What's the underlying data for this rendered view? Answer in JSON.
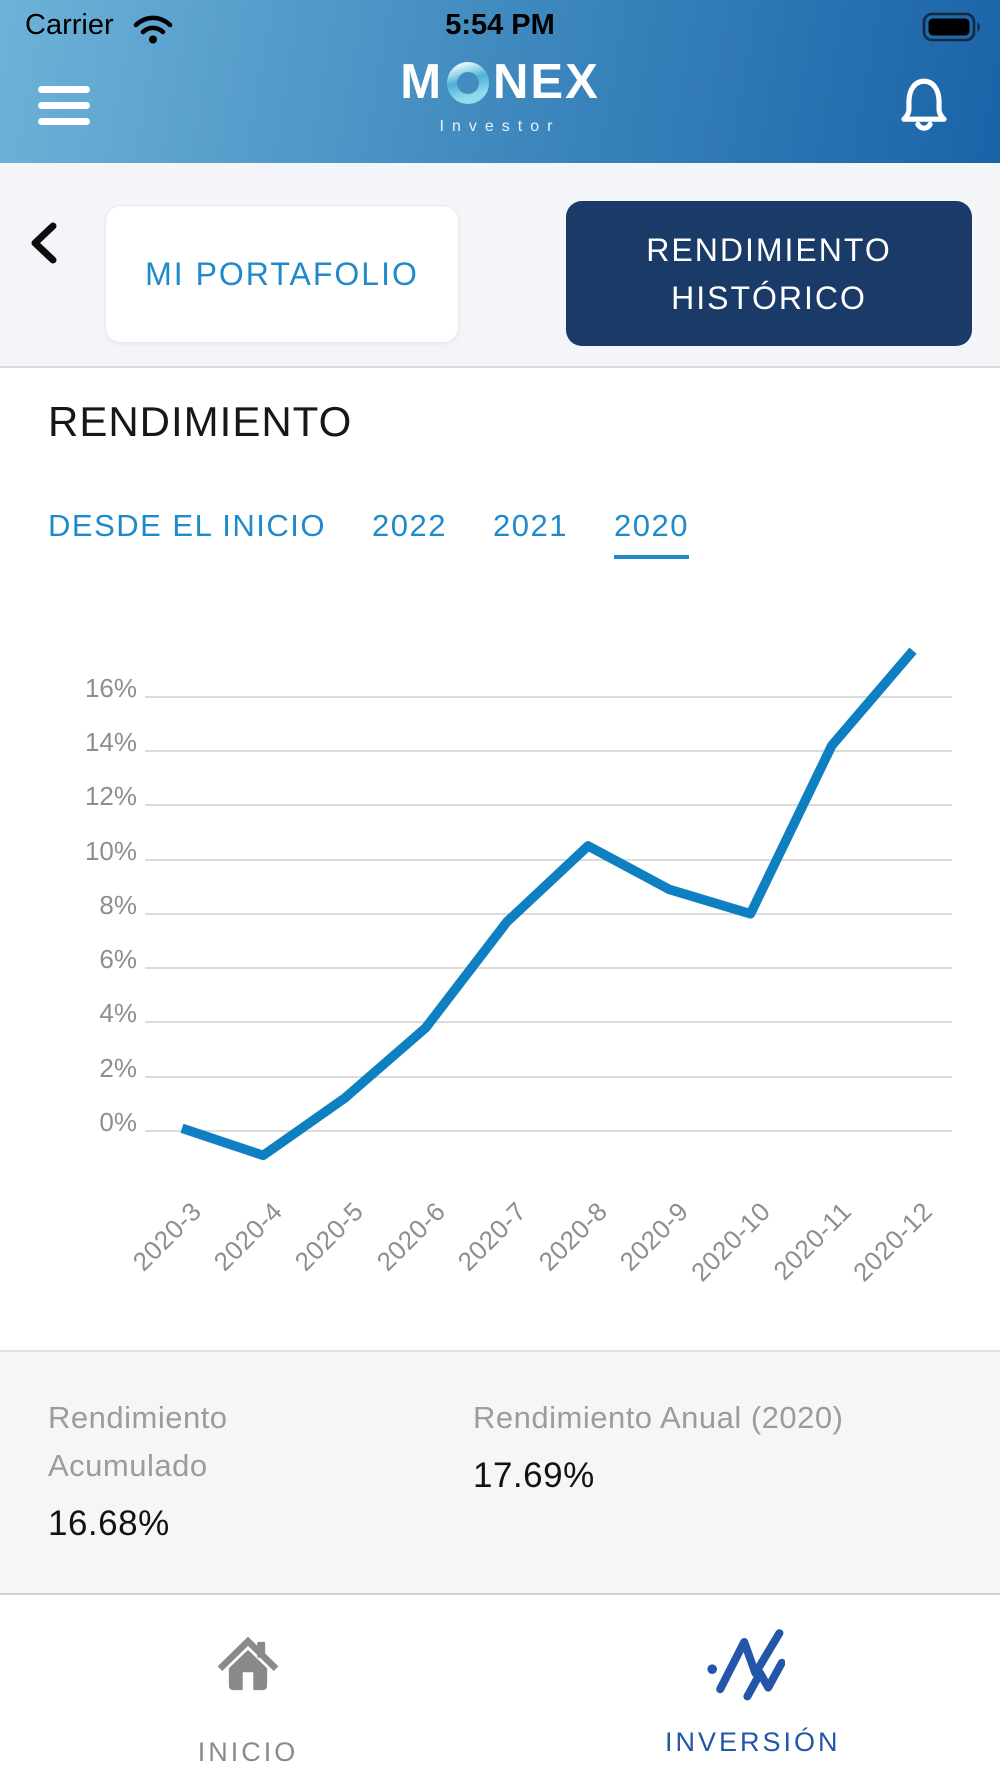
{
  "status_bar": {
    "carrier": "Carrier",
    "time": "5:54 PM"
  },
  "header": {
    "logo": {
      "brand": "MONEX",
      "brand_left": "M",
      "brand_right": "NEX",
      "subtitle": "Investor"
    }
  },
  "toolbar": {
    "tab_portfolio": "MI PORTAFOLIO",
    "tab_history": "RENDIMIENTO HISTÓRICO"
  },
  "performance": {
    "title": "RENDIMIENTO",
    "filters": [
      {
        "label": "DESDE EL INICIO",
        "active": false
      },
      {
        "label": "2022",
        "active": false
      },
      {
        "label": "2021",
        "active": false
      },
      {
        "label": "2020",
        "active": true
      }
    ]
  },
  "chart_data": {
    "type": "line",
    "categories": [
      "2020-3",
      "2020-4",
      "2020-5",
      "2020-6",
      "2020-7",
      "2020-8",
      "2020-9",
      "2020-10",
      "2020-11",
      "2020-12"
    ],
    "values": [
      0.1,
      -0.9,
      1.2,
      3.8,
      7.7,
      10.5,
      8.9,
      8.0,
      14.2,
      17.69
    ],
    "title": "",
    "xlabel": "",
    "ylabel": "",
    "y_ticks": [
      0,
      2,
      4,
      6,
      8,
      10,
      12,
      14,
      16
    ],
    "y_tick_suffix": "%",
    "ylim": [
      -1.5,
      18
    ],
    "grid": true,
    "legend": false,
    "line_color": "#0e80c1"
  },
  "stats": {
    "accumulated": {
      "label": "Rendimiento Acumulado",
      "value": "16.68%"
    },
    "annual": {
      "label": "Rendimiento Anual (2020)",
      "value": "17.69%"
    }
  },
  "bottom_nav": {
    "home": {
      "label": "INICIO",
      "active": false
    },
    "investment": {
      "label": "INVERSIÓN",
      "active": true
    }
  },
  "icons": {
    "wifi": "wifi-icon",
    "battery": "battery-icon",
    "menu": "hamburger-menu-icon",
    "bell": "notification-bell-icon",
    "back": "back-chevron-icon",
    "home": "home-icon",
    "investment": "investment-chart-icon"
  },
  "colors": {
    "header_gradient_start": "#6db2d8",
    "header_gradient_end": "#1a63a8",
    "accent_blue": "#1f8ac9",
    "dark_button": "#1a3a67",
    "chart_line": "#0e80c1",
    "grid_gray": "#dbdbdb",
    "axis_label_gray": "#8e8e8e",
    "stat_label_gray": "#9c9c9c",
    "nav_inactive_gray": "#8a8a8a",
    "nav_active_blue": "#2356a8"
  }
}
